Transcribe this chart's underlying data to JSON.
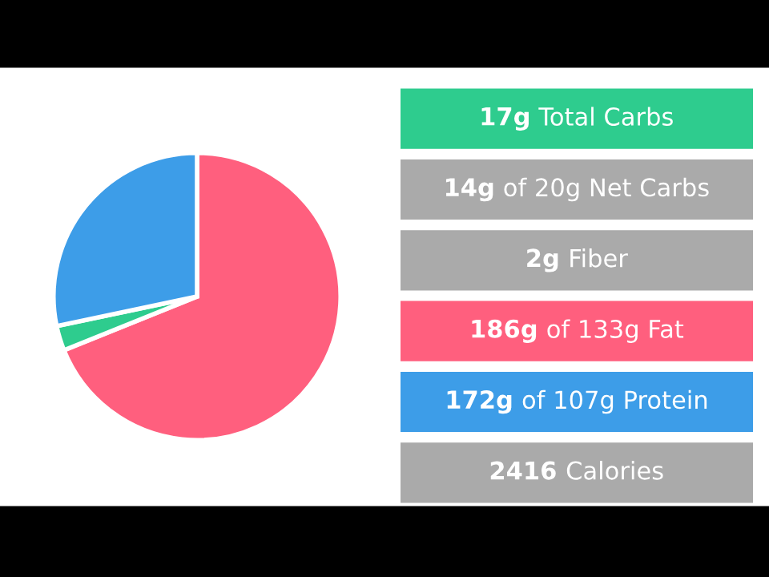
{
  "chart_data": [
    {
      "type": "pie",
      "categories": [
        null,
        null,
        null
      ],
      "values": [
        68.9,
        2.8,
        28.3
      ],
      "colors": [
        "#ff5f7e",
        "#2ecc8e",
        "#3d9de8"
      ]
    },
    {
      "type": "other",
      "annotations": [
        "17g Total Carbs",
        "14g of 20g Net Carbs",
        "2g Fiber",
        "186g of 133g Fat",
        "172g of 107g Protein",
        "2416 Calories"
      ]
    }
  ]
}
